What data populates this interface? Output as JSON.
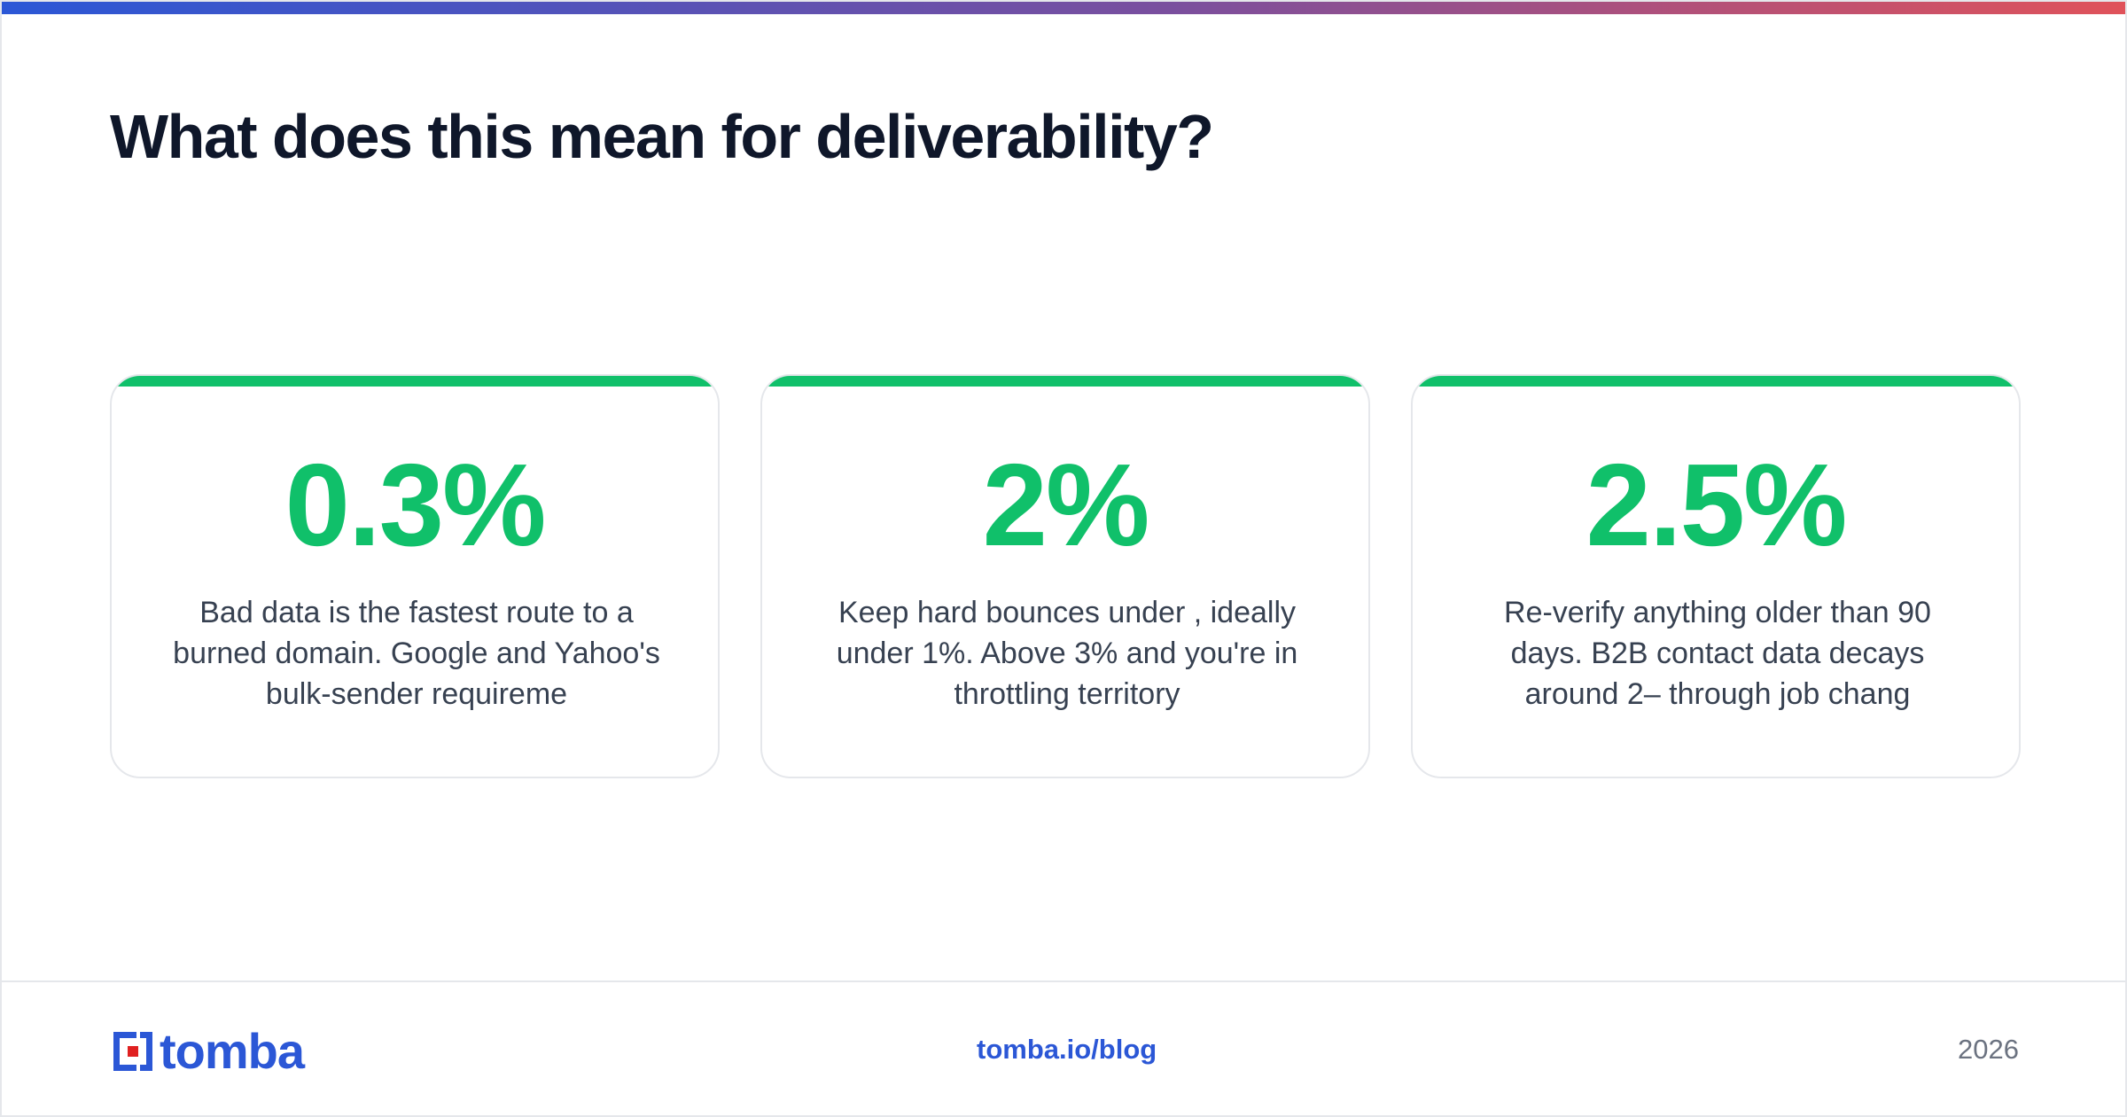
{
  "title": "What does this mean for deliverability?",
  "colors": {
    "accent": "#10c06a",
    "brand": "#2b57d6",
    "gradient_start": "#2b57d6",
    "gradient_end": "#e0525a",
    "logo_red": "#e02020"
  },
  "cards": [
    {
      "stat": "0.3%",
      "text": "Bad data is the fastest route to a burned domain. Google and Yahoo's bulk-sender requireme"
    },
    {
      "stat": "2%",
      "text": "Keep hard bounces under , ideally under 1%. Above 3% and you're in throttling territory"
    },
    {
      "stat": "2.5%",
      "text": "Re-verify anything older than 90 days. B2B contact data decays around 2– through job chang"
    }
  ],
  "footer": {
    "logo_text": "tomba",
    "link": "tomba.io/blog",
    "year": "2026"
  }
}
